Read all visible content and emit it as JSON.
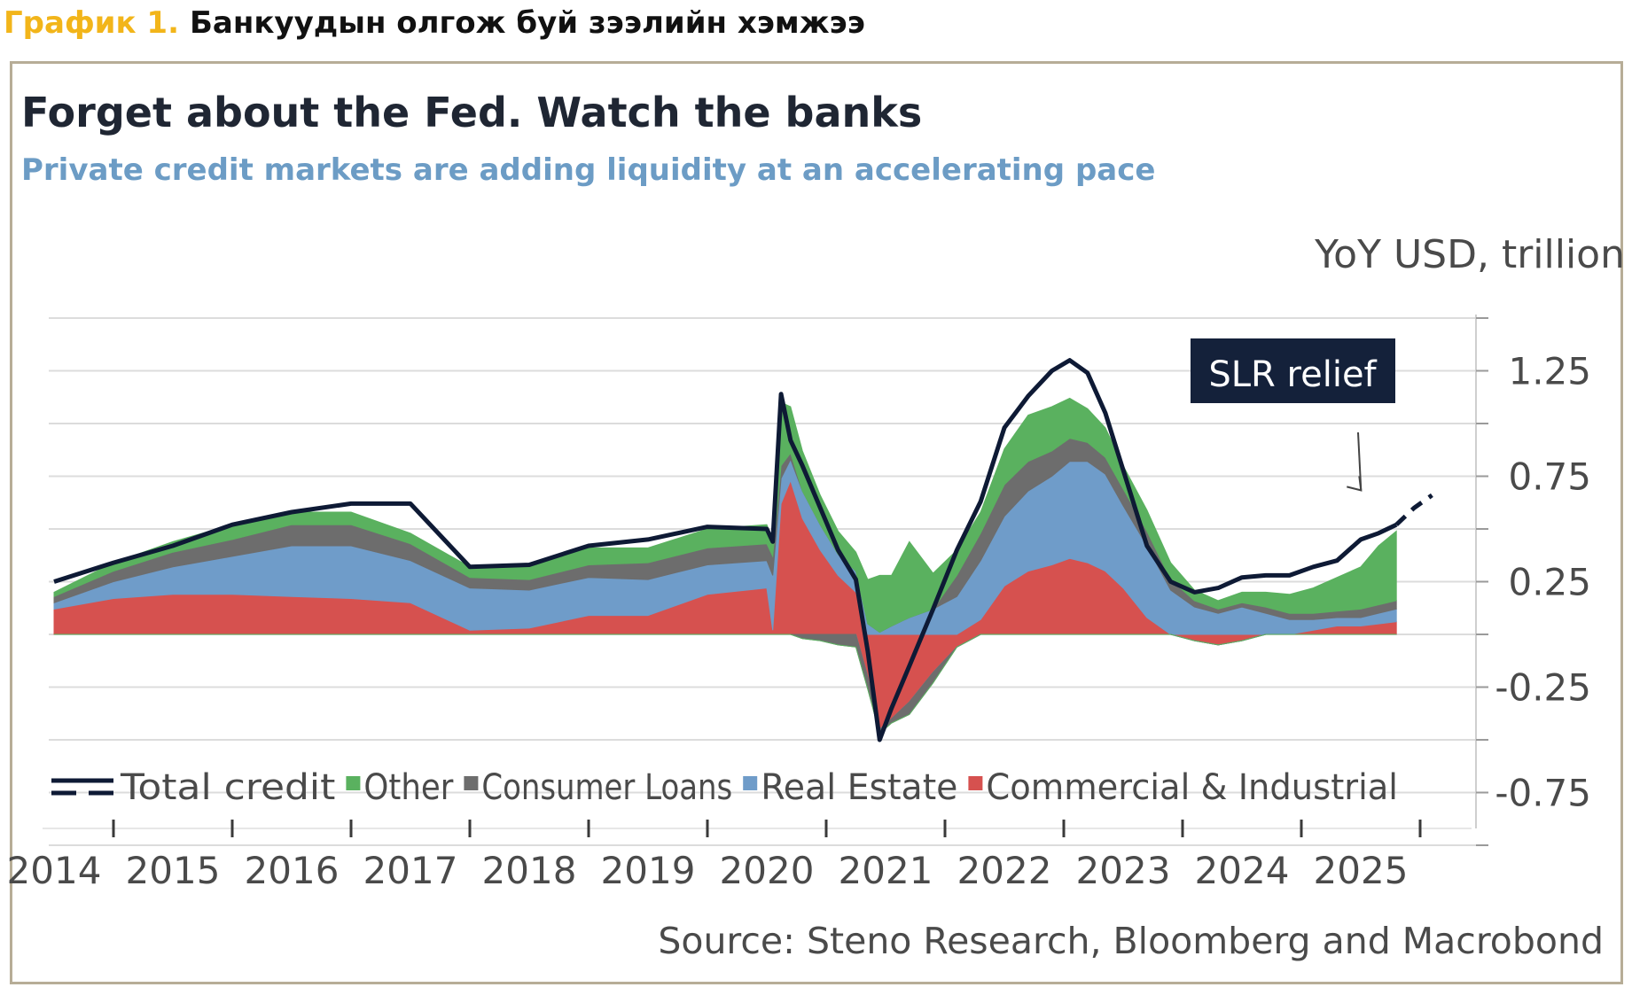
{
  "header": {
    "label": "График 1.",
    "title": "Банкуудын олгож буй зээлийн хэмжээ"
  },
  "source": "Source: Steno Research, Bloomberg and Macrobond",
  "colors": {
    "total": "#0e1a35",
    "other": "#5ab15f",
    "consumer": "#6d6d6d",
    "real_estate": "#6f9cc9",
    "commercial": "#d6514f",
    "header_label": "#f2b51a",
    "subtitle": "#6c9cc5",
    "frame": "#b7ad97"
  },
  "chart_data": {
    "type": "area",
    "title": "Forget about the Fed. Watch the banks",
    "subtitle": "Private credit markets are adding liquidity at an accelerating pace",
    "ylabel": "YoY USD, trillion",
    "xlabel": "",
    "ylim": [
      -1.0,
      1.5
    ],
    "y_ticks": [
      1.25,
      0.75,
      0.25,
      -0.25,
      -0.75
    ],
    "y_tick_labels": [
      "1.25",
      "0.75",
      "0.25",
      "-0.25",
      "-0.75"
    ],
    "x_tick_labels": [
      "2014",
      "2015",
      "2016",
      "2017",
      "2018",
      "2019",
      "2020",
      "2021",
      "2022",
      "2023",
      "2024",
      "2025"
    ],
    "x": [
      2014.0,
      2014.5,
      2015.0,
      2015.5,
      2016.0,
      2016.5,
      2017.0,
      2017.5,
      2018.0,
      2018.5,
      2019.0,
      2019.5,
      2020.0,
      2020.05,
      2020.12,
      2020.2,
      2020.3,
      2020.45,
      2020.6,
      2020.75,
      2020.85,
      2020.95,
      2021.05,
      2021.2,
      2021.4,
      2021.6,
      2021.8,
      2022.0,
      2022.2,
      2022.4,
      2022.55,
      2022.7,
      2022.85,
      2023.0,
      2023.2,
      2023.4,
      2023.6,
      2023.8,
      2024.0,
      2024.2,
      2024.4,
      2024.6,
      2024.8,
      2025.0,
      2025.15,
      2025.3
    ],
    "annotation": {
      "text": "SLR relief",
      "arrow_to": [
        2025.45,
        0.7
      ]
    },
    "series": [
      {
        "name": "Commercial & Industrial",
        "values": [
          0.12,
          0.17,
          0.19,
          0.19,
          0.18,
          0.17,
          0.15,
          0.02,
          0.03,
          0.09,
          0.09,
          0.19,
          0.22,
          0.02,
          0.62,
          0.73,
          0.55,
          0.4,
          0.28,
          0.2,
          -0.2,
          -0.45,
          -0.4,
          -0.32,
          -0.18,
          -0.06,
          0.07,
          0.23,
          0.3,
          0.33,
          0.36,
          0.34,
          0.3,
          0.22,
          0.08,
          0.0,
          -0.03,
          -0.05,
          -0.03,
          0.0,
          0.0,
          0.02,
          0.04,
          0.04,
          0.05,
          0.06
        ]
      },
      {
        "name": "Real Estate",
        "values": [
          0.03,
          0.08,
          0.13,
          0.18,
          0.24,
          0.25,
          0.2,
          0.2,
          0.18,
          0.18,
          0.17,
          0.14,
          0.13,
          0.26,
          0.12,
          0.1,
          0.13,
          0.12,
          0.1,
          0.1,
          0.05,
          0.01,
          0.04,
          0.08,
          0.12,
          0.18,
          0.28,
          0.33,
          0.38,
          0.42,
          0.46,
          0.48,
          0.46,
          0.39,
          0.34,
          0.21,
          0.13,
          0.1,
          0.13,
          0.1,
          0.07,
          0.05,
          0.04,
          0.04,
          0.05,
          0.06
        ]
      },
      {
        "name": "Consumer Loans",
        "values": [
          0.03,
          0.05,
          0.07,
          0.08,
          0.1,
          0.1,
          0.08,
          0.05,
          0.05,
          0.06,
          0.08,
          0.08,
          0.08,
          0.09,
          0.06,
          0.03,
          -0.02,
          -0.03,
          -0.05,
          -0.06,
          -0.06,
          -0.02,
          -0.02,
          -0.06,
          -0.05,
          0.1,
          0.13,
          0.15,
          0.14,
          0.12,
          0.11,
          0.09,
          0.08,
          0.08,
          0.07,
          0.05,
          0.03,
          0.02,
          0.02,
          0.03,
          0.03,
          0.03,
          0.03,
          0.04,
          0.04,
          0.04
        ]
      },
      {
        "name": "Other",
        "values": [
          0.02,
          0.04,
          0.05,
          0.07,
          0.06,
          0.06,
          0.05,
          0.05,
          0.06,
          0.08,
          0.07,
          0.09,
          0.09,
          0.08,
          0.3,
          0.22,
          0.19,
          0.14,
          0.11,
          0.09,
          0.21,
          0.27,
          0.24,
          0.36,
          0.17,
          0.12,
          0.1,
          0.17,
          0.22,
          0.21,
          0.19,
          0.16,
          0.14,
          0.11,
          0.1,
          0.08,
          0.05,
          0.04,
          0.05,
          0.07,
          0.09,
          0.12,
          0.16,
          0.2,
          0.28,
          0.33
        ]
      },
      {
        "name": "Total credit",
        "values": [
          0.25,
          0.34,
          0.42,
          0.52,
          0.58,
          0.62,
          0.62,
          0.32,
          0.33,
          0.42,
          0.45,
          0.51,
          0.5,
          0.44,
          1.14,
          0.92,
          0.8,
          0.6,
          0.4,
          0.26,
          -0.08,
          -0.5,
          -0.35,
          -0.15,
          0.12,
          0.4,
          0.63,
          0.98,
          1.13,
          1.25,
          1.3,
          1.24,
          1.05,
          0.78,
          0.42,
          0.25,
          0.2,
          0.22,
          0.27,
          0.28,
          0.28,
          0.32,
          0.35,
          0.45,
          0.48,
          0.52
        ]
      }
    ],
    "total_projection": {
      "x": [
        2025.3,
        2025.45,
        2025.6
      ],
      "values": [
        0.52,
        0.6,
        0.66
      ]
    },
    "legend_position": "bottom-left",
    "grid": true
  }
}
